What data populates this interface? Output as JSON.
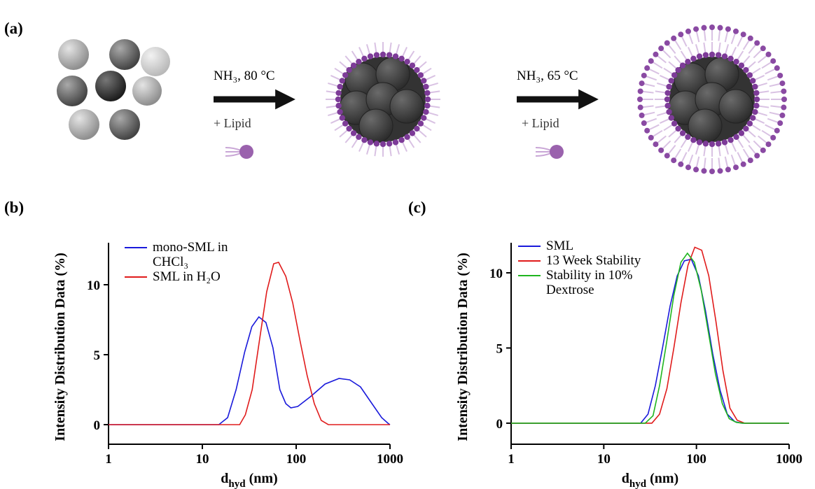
{
  "schematic": {
    "label": "(a)",
    "step1": {
      "condition": "NH₃, 80 °C",
      "reagent": "+ Lipid"
    },
    "step2": {
      "condition": "NH₃, 65 °C",
      "reagent": "+ Lipid"
    }
  },
  "chart_data": [
    {
      "type": "line",
      "panel_label": "(b)",
      "y_label": "Intensity Distribution Data (%)",
      "x_label": {
        "main": "d",
        "sub": "hyd",
        "unit": "(nm)"
      },
      "x_scale": "log",
      "xlim": [
        1,
        1000
      ],
      "xticks": [
        1,
        10,
        100,
        1000
      ],
      "ylim": [
        -1.4,
        13
      ],
      "yticks": [
        0,
        5,
        10
      ],
      "legend": "upper left",
      "series": [
        {
          "name": "mono-SML in CHCl₃",
          "color": "#1a1adb",
          "x": [
            1,
            15,
            18.6,
            22.9,
            28.3,
            33.7,
            40,
            47.6,
            56.5,
            67,
            77.5,
            87.7,
            104,
            142,
            203,
            286,
            372,
            484,
            628,
            815,
            970,
            1000
          ],
          "values": [
            0,
            0,
            0.5,
            2.5,
            5.2,
            7,
            7.7,
            7.3,
            5.5,
            2.5,
            1.5,
            1.2,
            1.3,
            2,
            2.9,
            3.3,
            3.2,
            2.7,
            1.6,
            0.5,
            0.05,
            0
          ]
        },
        {
          "name": "SML in H₂O",
          "color": "#e01b1b",
          "x": [
            1,
            25,
            28.7,
            34,
            40.6,
            48.5,
            57.6,
            65,
            77.5,
            92,
            110,
            131,
            156,
            185,
            220,
            1000
          ],
          "values": [
            0,
            0,
            0.7,
            2.5,
            6,
            9.5,
            11.5,
            11.6,
            10.6,
            8.7,
            6,
            3.5,
            1.5,
            0.3,
            0,
            0
          ]
        }
      ]
    },
    {
      "type": "line",
      "panel_label": "(c)",
      "y_label": "Intensity Distribution Data (%)",
      "x_label": {
        "main": "d",
        "sub": "hyd",
        "unit": "(nm)"
      },
      "x_scale": "log",
      "xlim": [
        1,
        1000
      ],
      "xticks": [
        1,
        10,
        100,
        1000
      ],
      "ylim": [
        -1.4,
        12
      ],
      "yticks": [
        0,
        5,
        10
      ],
      "legend": "upper left",
      "series": [
        {
          "name": "SML",
          "color": "#1a1adb",
          "x": [
            1,
            25,
            30,
            36,
            43,
            52,
            62,
            74,
            88,
            105,
            125,
            150,
            180,
            215,
            260,
            310,
            1000
          ],
          "values": [
            0,
            0,
            0.6,
            2.5,
            5,
            7.8,
            9.8,
            10.8,
            10.9,
            9.8,
            7.5,
            4.6,
            2.2,
            0.6,
            0.1,
            0,
            0
          ]
        },
        {
          "name": "13 Week Stability",
          "color": "#e01b1b",
          "x": [
            1,
            33,
            40,
            48,
            57,
            68,
            81,
            96,
            114,
            136,
            162,
            193,
            230,
            275,
            330,
            1000
          ],
          "values": [
            0,
            0,
            0.6,
            2.3,
            5,
            8,
            10.5,
            11.7,
            11.5,
            9.8,
            6.8,
            3.5,
            1,
            0.2,
            0,
            0
          ]
        },
        {
          "name": "Stability in 10% Dextrose",
          "color": "#1fb51f",
          "x": [
            1,
            28,
            34,
            40,
            48,
            57,
            68,
            80,
            95,
            113,
            135,
            160,
            190,
            226,
            270,
            320,
            1000
          ],
          "values": [
            0,
            0,
            0.5,
            2.5,
            5.5,
            8.5,
            10.7,
            11.3,
            10.7,
            8.8,
            6,
            3.3,
            1.3,
            0.3,
            0.05,
            0,
            0
          ]
        }
      ]
    }
  ]
}
